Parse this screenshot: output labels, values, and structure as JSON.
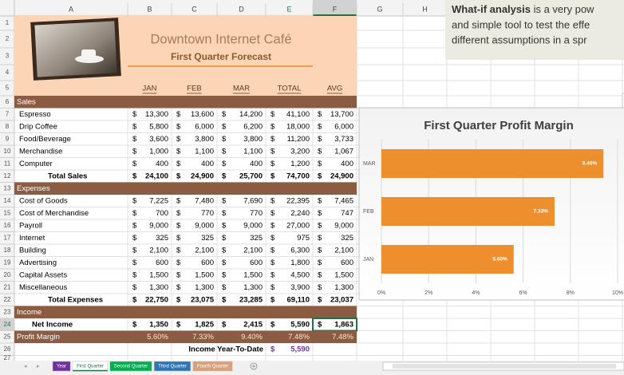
{
  "sheet": {
    "column_letters": [
      "A",
      "B",
      "C",
      "D",
      "E",
      "F",
      "G",
      "H"
    ],
    "row_numbers": [
      1,
      2,
      3,
      4,
      5,
      6,
      7,
      8,
      9,
      10,
      11,
      12,
      13,
      14,
      15,
      16,
      17,
      18,
      19,
      20,
      21,
      22,
      23,
      24,
      25,
      26,
      27
    ],
    "title": "Downtown Internet Café",
    "subtitle": "First Quarter Forecast",
    "month_headers": [
      "JAN",
      "FEB",
      "MAR",
      "TOTAL",
      "AVG"
    ],
    "currency": "$",
    "rows": [
      {
        "kind": "section",
        "label": "Sales"
      },
      {
        "kind": "item",
        "label": "Espresso",
        "cells": [
          "13,300",
          "13,600",
          "14,200",
          "41,100",
          "13,700"
        ]
      },
      {
        "kind": "item",
        "label": "Drip Coffee",
        "cells": [
          "5,800",
          "6,000",
          "6,200",
          "18,000",
          "6,000"
        ]
      },
      {
        "kind": "item",
        "label": "Food/Beverage",
        "cells": [
          "3,600",
          "3,800",
          "3,800",
          "11,200",
          "3,733"
        ]
      },
      {
        "kind": "item",
        "label": "Merchandise",
        "cells": [
          "1,000",
          "1,100",
          "1,100",
          "3,200",
          "1,067"
        ]
      },
      {
        "kind": "item",
        "label": "Computer",
        "cells": [
          "400",
          "400",
          "400",
          "1,200",
          "400"
        ]
      },
      {
        "kind": "total",
        "label": "Total Sales",
        "cells": [
          "24,100",
          "24,900",
          "25,700",
          "74,700",
          "24,900"
        ]
      },
      {
        "kind": "section",
        "label": "Expenses"
      },
      {
        "kind": "item",
        "label": "Cost of Goods",
        "cells": [
          "7,225",
          "7,480",
          "7,690",
          "22,395",
          "7,465"
        ]
      },
      {
        "kind": "item",
        "label": "Cost of Merchandise",
        "cells": [
          "700",
          "770",
          "770",
          "2,240",
          "747"
        ]
      },
      {
        "kind": "item",
        "label": "Payroll",
        "cells": [
          "9,000",
          "9,000",
          "9,000",
          "27,000",
          "9,000"
        ]
      },
      {
        "kind": "item",
        "label": "Internet",
        "cells": [
          "325",
          "325",
          "325",
          "975",
          "325"
        ]
      },
      {
        "kind": "item",
        "label": "Building",
        "cells": [
          "2,100",
          "2,100",
          "2,100",
          "6,300",
          "2,100"
        ]
      },
      {
        "kind": "item",
        "label": "Advertising",
        "cells": [
          "600",
          "600",
          "600",
          "1,800",
          "600"
        ]
      },
      {
        "kind": "item",
        "label": "Capital Assets",
        "cells": [
          "1,500",
          "1,500",
          "1,500",
          "4,500",
          "1,500"
        ]
      },
      {
        "kind": "item",
        "label": "Miscellaneous",
        "cells": [
          "1,300",
          "1,300",
          "1,300",
          "3,900",
          "1,300"
        ]
      },
      {
        "kind": "total",
        "label": "Total Expenses",
        "cells": [
          "22,750",
          "23,075",
          "23,285",
          "69,110",
          "23,037"
        ]
      },
      {
        "kind": "section",
        "label": "Income"
      },
      {
        "kind": "net",
        "label": "Net Income",
        "cells": [
          "1,350",
          "1,825",
          "2,415",
          "5,590",
          "1,863"
        ]
      },
      {
        "kind": "margin",
        "label": "Profit Margin",
        "cells": [
          "5.60%",
          "7.33%",
          "9.40%",
          "7.48%",
          "7.48%"
        ]
      },
      {
        "kind": "ytd",
        "label": "Income Year-To-Date",
        "value": "5,590"
      }
    ]
  },
  "callout": {
    "lead": "What-if analysis",
    "lines": [
      " is a very pow",
      "and simple tool to test the effe",
      "different assumptions in a spr"
    ]
  },
  "chart": {
    "type": "bar",
    "orientation": "horizontal",
    "title": "First Quarter Profit Margin",
    "categories": [
      "JAN",
      "FEB",
      "MAR"
    ],
    "values": [
      5.6,
      7.33,
      9.4
    ],
    "value_labels": [
      "5.60%",
      "7.33%",
      "9.40%"
    ],
    "color": "#ee8f2e",
    "xlim": [
      0,
      10
    ],
    "xticks": [
      {
        "value": 0,
        "label": "0%"
      },
      {
        "value": 2,
        "label": "2%"
      },
      {
        "value": 4,
        "label": "4%"
      },
      {
        "value": 6,
        "label": "6%"
      },
      {
        "value": 8,
        "label": "8%"
      },
      {
        "value": 10,
        "label": "10%"
      }
    ],
    "grid": true
  },
  "tabs": [
    {
      "label": "Year",
      "color": "#7030a0"
    },
    {
      "label": "First Quarter",
      "color": "#ffffff",
      "active": true
    },
    {
      "label": "Second Quarter",
      "color": "#00b050"
    },
    {
      "label": "Third Quarter",
      "color": "#2e75b6"
    },
    {
      "label": "Fourth Quarter",
      "color": "#d6a17c"
    }
  ]
}
